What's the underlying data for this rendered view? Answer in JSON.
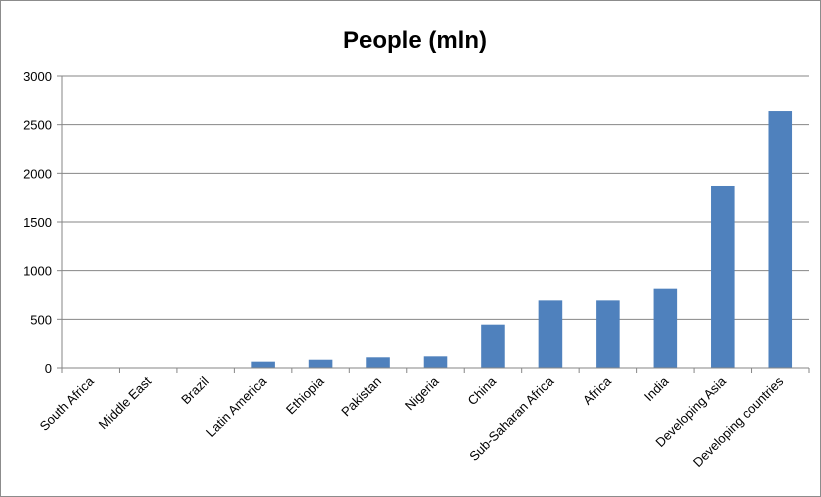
{
  "chart_data": {
    "type": "bar",
    "title": "People (mln)",
    "xlabel": "",
    "ylabel": "",
    "ylim": [
      0,
      3000
    ],
    "yticks": [
      0,
      500,
      1000,
      1500,
      2000,
      2500,
      3000
    ],
    "grid": true,
    "legend": "none",
    "bar_color": "#4F81BD",
    "categories": [
      "South Africa",
      "Middle East",
      "Brazil",
      "Latin America",
      "Ethiopia",
      "Pakistan",
      "Nigeria",
      "China",
      "Sub-Saharan Africa",
      "Africa",
      "India",
      "Developing Asia",
      "Developing countries"
    ],
    "values": [
      5,
      5,
      5,
      65,
      85,
      110,
      120,
      445,
      695,
      695,
      815,
      1870,
      2640
    ]
  }
}
